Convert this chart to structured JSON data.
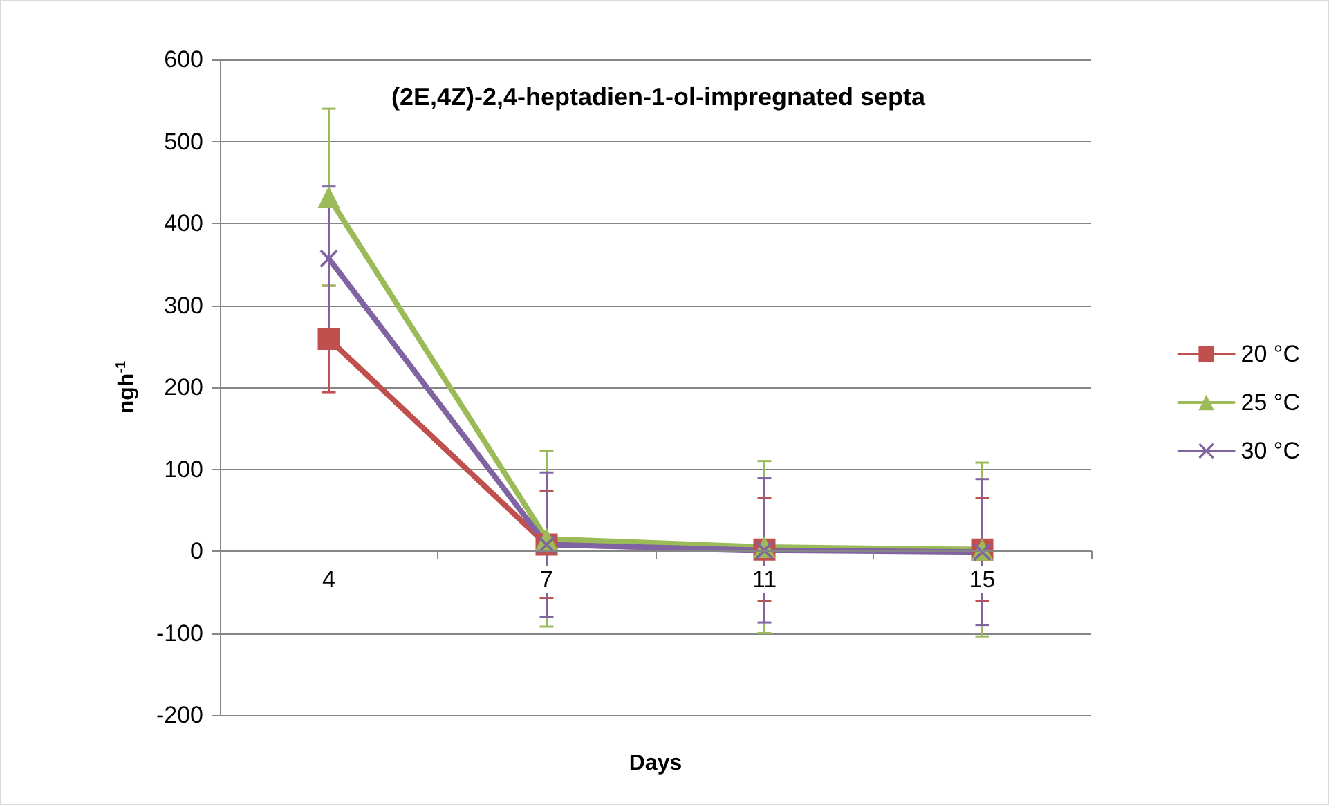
{
  "chart_data": {
    "type": "line",
    "title": "(2E,4Z)-2,4-heptadien-1-ol-impregnated septa",
    "xlabel": "Days",
    "ylabel": "ngh$^{-1}$",
    "categories": [
      "4",
      "7",
      "11",
      "15"
    ],
    "series": [
      {
        "name": "20 °C",
        "color": "#c0504d",
        "marker": "square",
        "values": [
          259,
          8,
          2,
          2
        ],
        "errors": [
          65,
          65,
          63,
          63
        ]
      },
      {
        "name": "25 °C",
        "color": "#9bbb59",
        "marker": "triangle",
        "values": [
          432,
          15,
          5,
          2
        ],
        "errors": [
          108,
          107,
          105,
          106
        ]
      },
      {
        "name": "30 °C",
        "color": "#8064a2",
        "marker": "cross",
        "values": [
          357,
          8,
          1,
          -1
        ],
        "errors": [
          88,
          88,
          88,
          89
        ]
      }
    ],
    "ylim": [
      -200,
      600
    ],
    "yticks": [
      -200,
      -100,
      0,
      100,
      200,
      300,
      400,
      500,
      600
    ],
    "grid": "y",
    "legend": "right"
  }
}
